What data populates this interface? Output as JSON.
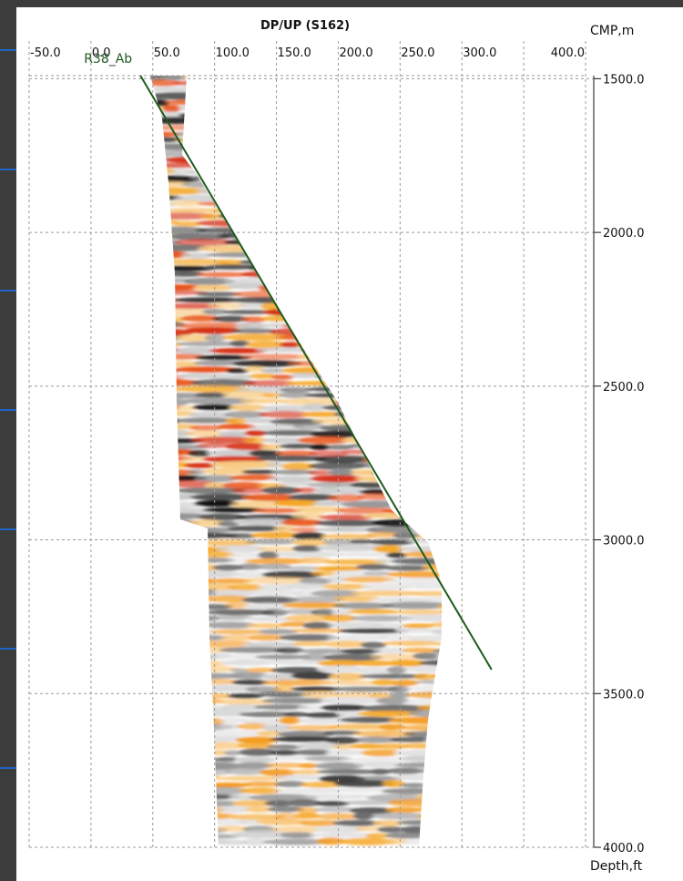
{
  "chart_data": {
    "type": "seismic",
    "title": "DP/UP (S162)",
    "x_label": "CMP,m",
    "y_label": "Depth,ft",
    "xlim": [
      -50,
      400
    ],
    "xticks": [
      {
        "value": -50,
        "label": "-50.0"
      },
      {
        "value": 0,
        "label": "0.0"
      },
      {
        "value": 50,
        "label": "50.0"
      },
      {
        "value": 100,
        "label": "100.0"
      },
      {
        "value": 150,
        "label": "150.0"
      },
      {
        "value": 200,
        "label": "200.0"
      },
      {
        "value": 250,
        "label": "250.0"
      },
      {
        "value": 300,
        "label": "300.0"
      },
      {
        "value": 350,
        "label": null
      },
      {
        "value": 400,
        "label": "400.0"
      }
    ],
    "ylim": [
      1490,
      4000
    ],
    "yticks": [
      {
        "value": 1500,
        "label": "1500.0"
      },
      {
        "value": 2000,
        "label": "2000.0"
      },
      {
        "value": 2500,
        "label": "2500.0"
      },
      {
        "value": 3000,
        "label": "3000.0"
      },
      {
        "value": 3500,
        "label": "3500.0"
      },
      {
        "value": 4000,
        "label": "4000.0"
      }
    ],
    "grid": true,
    "series": [
      {
        "name": "R38_Ab",
        "color": "#1e5a1e",
        "x": [
          40,
          324
        ],
        "values": [
          1490,
          3422
        ]
      }
    ]
  }
}
